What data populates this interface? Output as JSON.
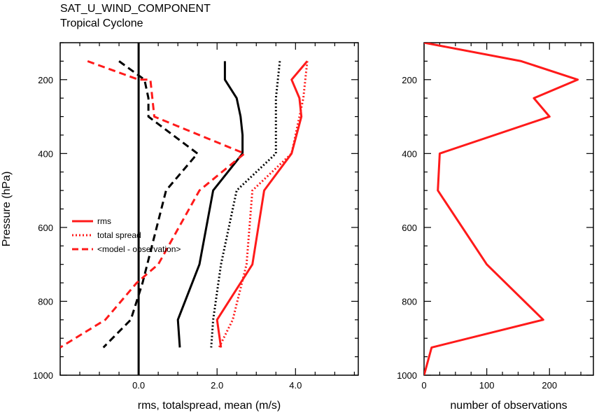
{
  "header": {
    "title": "SAT_U_WIND_COMPONENT",
    "subtitle": "Tropical Cyclone"
  },
  "legend": {
    "items": [
      {
        "label": "rms",
        "style": "solid"
      },
      {
        "label": "total spread",
        "style": "dotted"
      },
      {
        "label": "<model - observation>",
        "style": "dashed"
      }
    ]
  },
  "colors": {
    "red": "#ff1a1a",
    "black": "#000000"
  },
  "chart_data": [
    {
      "type": "line",
      "xlabel": "rms, totalspread, mean (m/s)",
      "ylabel": "Pressure (hPa)",
      "xlim": [
        -2.0,
        5.6
      ],
      "ylim": [
        1000,
        100
      ],
      "y_reversed": true,
      "x_ticks": [
        0.0,
        2.0,
        4.0
      ],
      "x_tick_labels": [
        "0.0",
        "2.0",
        "4.0"
      ],
      "y_ticks": [
        200,
        400,
        600,
        800,
        1000
      ],
      "y_tick_labels": [
        "200",
        "400",
        "600",
        "800",
        "1000"
      ],
      "zero_line": 0.0,
      "series": [
        {
          "name": "rms (black)",
          "color": "black",
          "style": "solid",
          "x": [
            2.2,
            2.2,
            2.5,
            2.6,
            2.65,
            2.65,
            1.9,
            1.55,
            1.0,
            1.05
          ],
          "y": [
            150,
            200,
            250,
            300,
            350,
            400,
            500,
            700,
            850,
            925
          ]
        },
        {
          "name": "total spread (black)",
          "color": "black",
          "style": "dotted",
          "x": [
            3.6,
            3.5,
            3.5,
            3.5,
            2.5,
            2.1,
            1.9,
            1.85
          ],
          "y": [
            150,
            250,
            300,
            400,
            500,
            700,
            850,
            925
          ]
        },
        {
          "name": "<model - observation> (black)",
          "color": "black",
          "style": "dashed",
          "x": [
            -0.5,
            0.15,
            0.25,
            0.25,
            1.5,
            0.7,
            0.1,
            -0.2,
            -0.9
          ],
          "y": [
            150,
            200,
            250,
            300,
            400,
            500,
            750,
            850,
            925
          ]
        },
        {
          "name": "rms (red)",
          "color": "red",
          "style": "solid",
          "x": [
            4.3,
            3.9,
            4.1,
            4.15,
            3.9,
            3.2,
            2.9,
            2.0,
            2.1
          ],
          "y": [
            150,
            200,
            250,
            300,
            400,
            500,
            700,
            850,
            925
          ]
        },
        {
          "name": "total spread (red)",
          "color": "red",
          "style": "dotted",
          "x": [
            4.3,
            4.2,
            3.9,
            2.9,
            2.75,
            2.4,
            2.05
          ],
          "y": [
            150,
            250,
            400,
            500,
            700,
            850,
            925
          ]
        },
        {
          "name": "<model - observation> (red)",
          "color": "red",
          "style": "dashed",
          "x": [
            -1.3,
            0.0,
            0.3,
            0.35,
            0.4,
            2.7,
            1.55,
            0.5,
            -0.05,
            -0.85,
            -2.0
          ],
          "y": [
            150,
            200,
            200,
            250,
            300,
            400,
            500,
            700,
            750,
            850,
            925
          ]
        }
      ]
    },
    {
      "type": "line",
      "xlabel": "number of observations",
      "ylabel": "",
      "xlim": [
        0,
        270
      ],
      "ylim": [
        1000,
        100
      ],
      "y_reversed": true,
      "x_ticks": [
        0,
        100,
        200
      ],
      "x_tick_labels": [
        "0",
        "100",
        "200"
      ],
      "y_ticks": [
        200,
        400,
        600,
        800,
        1000
      ],
      "y_tick_labels": [
        "200",
        "400",
        "600",
        "800",
        "1000"
      ],
      "series": [
        {
          "name": "observations",
          "color": "red",
          "style": "solid",
          "x": [
            0,
            155,
            245,
            175,
            200,
            25,
            22,
            100,
            190,
            12,
            0
          ],
          "y": [
            100,
            150,
            200,
            250,
            300,
            400,
            500,
            700,
            850,
            925,
            1000
          ]
        }
      ]
    }
  ]
}
